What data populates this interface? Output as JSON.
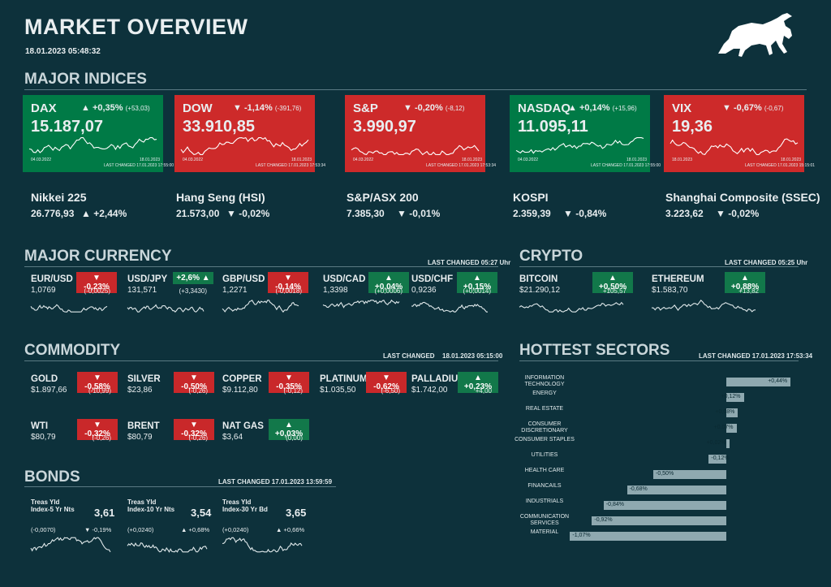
{
  "header": {
    "title": "MARKET OVERVIEW",
    "datetime": "18.01.2023 05:48:32"
  },
  "sections": {
    "indices": "MAJOR INDICES",
    "currency": "MAJOR CURRENCY",
    "currency_changed": "LAST CHANGED 05:27 Uhr",
    "crypto": "CRYPTO",
    "crypto_changed": "LAST CHANGED 05:25 Uhr",
    "commodity": "COMMODITY",
    "commodity_changed_label": "LAST CHANGED",
    "commodity_changed_time": "18.01.2023 05:15:00",
    "sectors": "HOTTEST SECTORS",
    "sectors_changed": "LAST CHANGED 17.01.2023 17:53:34",
    "bonds": "BONDS",
    "bonds_changed": "LAST CHANGED 17.01.2023 13:59:59"
  },
  "indices": [
    {
      "name": "DAX",
      "chg": "▲ +0,35%",
      "abs": "(+53,03)",
      "value": "15.187,07",
      "start": "04.03.2022",
      "end": "18.01.2023",
      "changed": "LAST CHANGED 17.01.2023 17:55:00",
      "color": "green"
    },
    {
      "name": "DOW",
      "chg": "▼ -1,14%",
      "abs": "(-391,76)",
      "value": "33.910,85",
      "start": "04.03.2022",
      "end": "18.01.2023",
      "changed": "LAST CHANGED 17.01.2023 17:53:34",
      "color": "red"
    },
    {
      "name": "S&P",
      "chg": "▼ -0,20%",
      "abs": "(-8,12)",
      "value": "3.990,97",
      "start": "04.03.2022",
      "end": "18.01.2023",
      "changed": "LAST CHANGED 17.01.2023 17:53:34",
      "color": "red"
    },
    {
      "name": "NASDAQ",
      "chg": "▲ +0,14%",
      "abs": "(+15,96)",
      "value": "11.095,11",
      "start": "04.03.2022",
      "end": "18.01.2023",
      "changed": "LAST CHANGED 17.01.2023 17:55:00",
      "color": "green"
    },
    {
      "name": "VIX",
      "chg": "▼ -0,67%",
      "abs": "(-0,67)",
      "value": "19,36",
      "start": "18.01.2023",
      "end": "18.01.2023",
      "changed": "LAST CHANGED 17.01.2023 15:15:01",
      "color": "red"
    }
  ],
  "sub_indices": [
    {
      "name": "Nikkei 225",
      "value": "26.776,93",
      "chg": "▲ +2,44%"
    },
    {
      "name": "Hang Seng (HSI)",
      "value": "21.573,00",
      "chg": "▼ -0,02%"
    },
    {
      "name": "S&P/ASX 200",
      "value": "7.385,30",
      "chg": "▼ -0,01%"
    },
    {
      "name": "KOSPI",
      "value": "2.359,39",
      "chg": "▼ -0,84%"
    },
    {
      "name": "Shanghai Composite (SSEC)",
      "value": "3.223,62",
      "chg": "▼ -0,02%"
    }
  ],
  "currency": [
    {
      "name": "EUR/USD",
      "badge": "▼ -0,23%",
      "color": "red",
      "price": "1,0769",
      "abs": "(-0,0025)"
    },
    {
      "name": "USD/JPY",
      "badge": "+2,6% ▲",
      "color": "green",
      "price": "131,571",
      "abs": "(+3,3430)"
    },
    {
      "name": "GBP/USD",
      "badge": "▼ -0,14%",
      "color": "red",
      "price": "1,2271",
      "abs": "(-0,0018)"
    },
    {
      "name": "USD/CAD",
      "badge": "▲ +0,04%",
      "color": "green",
      "price": "1,3398",
      "abs": "(+0,0006)"
    },
    {
      "name": "USD/CHF",
      "badge": "▲ +0,15%",
      "color": "green",
      "price": "0,9236",
      "abs": "(+0,0014)"
    }
  ],
  "crypto": [
    {
      "name": "BITCOIN",
      "badge": "▲ +0,50%",
      "color": "green",
      "price": "$21.290,12",
      "abs": "+105,57"
    },
    {
      "name": "ETHEREUM",
      "badge": "▲ +0,88%",
      "color": "green",
      "price": "$1.583,70",
      "abs": "+13,82"
    }
  ],
  "commodity": [
    {
      "name": "GOLD",
      "badge": "▼ -0,58%",
      "color": "red",
      "price": "$1.897,66",
      "abs": "(-10,99)"
    },
    {
      "name": "SILVER",
      "badge": "▼ -0,50%",
      "color": "red",
      "price": "$23,86",
      "abs": "(-0,26)"
    },
    {
      "name": "COPPER",
      "badge": "▼ -0,35%",
      "color": "red",
      "price": "$9.112,80",
      "abs": "(-0,12)"
    },
    {
      "name": "PLATINUM",
      "badge": "▼ -0,62%",
      "color": "red",
      "price": "$1.035,50",
      "abs": "(-6,50)"
    },
    {
      "name": "PALLADIUM",
      "badge": "▲ +0,23%",
      "color": "green",
      "price": "$1.742,00",
      "abs": "+4,00"
    },
    {
      "name": "WTI",
      "badge": "▼ -0,32%",
      "color": "red",
      "price": "$80,79",
      "abs": "(-0,26)"
    },
    {
      "name": "BRENT",
      "badge": "▼ -0,32%",
      "color": "red",
      "price": "$80,79",
      "abs": "(-0,26)"
    },
    {
      "name": "NAT GAS",
      "badge": "▲ +0,03%",
      "color": "green",
      "price": "$3,64",
      "abs": "(0,00)"
    }
  ],
  "bonds": [
    {
      "name": "Treas Yld Index-5 Yr Nts",
      "value": "3,61",
      "abs": "(-0,0070)",
      "chg": "▼ -0,19%"
    },
    {
      "name": "Treas Yld Index-10 Yr Nts",
      "value": "3,54",
      "abs": "(+0,0240)",
      "chg": "▲ +0,68%"
    },
    {
      "name": "Treas Yld Index-30 Yr Bd",
      "value": "3,65",
      "abs": "(+0,0240)",
      "chg": "▲ +0,66%"
    }
  ],
  "sectors": [
    {
      "label": "INFORMATION TECHNOLOGY",
      "value": 0.44,
      "text": "+0,44%"
    },
    {
      "label": "ENERGY",
      "value": 0.12,
      "text": "+0,12%"
    },
    {
      "label": "REAL ESTATE",
      "value": 0.08,
      "text": "+0,08%"
    },
    {
      "label": "CONSUMER DISCRETIONARY",
      "value": 0.07,
      "text": "+0,07%"
    },
    {
      "label": "CONSUMER STAPLES",
      "value": 0.02,
      "text": "+0,02%"
    },
    {
      "label": "UTILITIES",
      "value": -0.12,
      "text": "-0,12%"
    },
    {
      "label": "HEALTH CARE",
      "value": -0.5,
      "text": "-0,50%"
    },
    {
      "label": "FINANCAILS",
      "value": -0.68,
      "text": "-0,68%"
    },
    {
      "label": "INDUSTRIALS",
      "value": -0.84,
      "text": "-0,84%"
    },
    {
      "label": "COMMUNICATION SERVICES",
      "value": -0.92,
      "text": "-0,92%"
    },
    {
      "label": "MATERIAL",
      "value": -1.07,
      "text": "-1,07%"
    }
  ],
  "colors": {
    "background": "#0d313b",
    "green": "#007a46",
    "red": "#cd2a2a",
    "bar": "#8fa9b0"
  },
  "icons": {
    "logo": "bull-icon"
  }
}
